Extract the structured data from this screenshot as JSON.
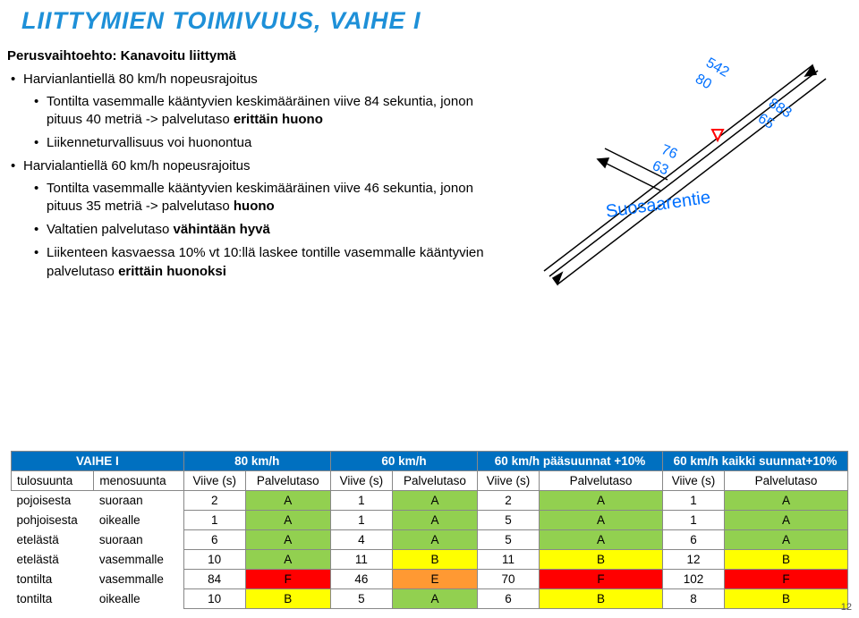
{
  "title": "LIITTYMIEN TOIMIVUUS, VAIHE I",
  "subheading": "Perusvaihtoehto: Kanavoitu liittymä",
  "bullets": [
    {
      "text": "Harvianlantiellä 80 km/h nopeusrajoitus",
      "sub": [
        {
          "pre": "Tontilta vasemmalle kääntyvien keskimääräinen viive 84 sekuntia, jonon pituus 40 metriä -> palvelutaso ",
          "bold": "erittäin huono"
        },
        {
          "pre": "Liikenneturvallisuus voi huonontua"
        }
      ]
    },
    {
      "text": "Harvialantiellä 60 km/h nopeusrajoitus",
      "sub": [
        {
          "pre": "Tontilta vasemmalle kääntyvien keskimääräinen viive 46 sekuntia, jonon pituus 35 metriä -> palvelutaso ",
          "bold": "huono"
        },
        {
          "pre": "Valtatien palvelutaso ",
          "bold": "vähintään hyvä"
        },
        {
          "pre": "Liikenteen kasvaessa 10% vt 10:llä laskee tontille vasemmalle kääntyvien palvelutaso ",
          "bold": "erittäin huonoksi"
        }
      ]
    }
  ],
  "map": {
    "road_arrow_color": "#000000",
    "road_fill": "#dcdcdc",
    "label_color": "#0070ff",
    "labels": {
      "a": "542",
      "b": "80",
      "c": "883",
      "d": "65",
      "e": "76",
      "f": "63"
    },
    "street": "Suosaarentie",
    "triangle_stroke": "#ff0000",
    "triangle_fill": "#ffffff"
  },
  "table": {
    "vaihe": "VAIHE I",
    "groups": [
      "80 km/h",
      "60 km/h",
      "60 km/h pääsuunnat +10%",
      "60 km/h kaikki suunnat+10%"
    ],
    "subhdr_dir1": "tulosuunta",
    "subhdr_dir2": "menosuunta",
    "subhdr_v": "Viive (s)",
    "subhdr_p": "Palvelutaso",
    "rows": [
      {
        "d1": "pojoisesta",
        "d2": "suoraan",
        "c": [
          [
            "2",
            "A"
          ],
          [
            "1",
            "A"
          ],
          [
            "2",
            "A"
          ],
          [
            "1",
            "A"
          ]
        ]
      },
      {
        "d1": "pohjoisesta",
        "d2": "oikealle",
        "c": [
          [
            "1",
            "A"
          ],
          [
            "1",
            "A"
          ],
          [
            "5",
            "A"
          ],
          [
            "1",
            "A"
          ]
        ]
      },
      {
        "d1": "etelästä",
        "d2": "suoraan",
        "c": [
          [
            "6",
            "A"
          ],
          [
            "4",
            "A"
          ],
          [
            "5",
            "A"
          ],
          [
            "6",
            "A"
          ]
        ]
      },
      {
        "d1": "etelästä",
        "d2": "vasemmalle",
        "c": [
          [
            "10",
            "A"
          ],
          [
            "11",
            "B"
          ],
          [
            "11",
            "B"
          ],
          [
            "12",
            "B"
          ]
        ]
      },
      {
        "d1": "tontilta",
        "d2": "vasemmalle",
        "c": [
          [
            "84",
            "F"
          ],
          [
            "46",
            "E"
          ],
          [
            "70",
            "F"
          ],
          [
            "102",
            "F"
          ]
        ]
      },
      {
        "d1": "tontilta",
        "d2": "oikealle",
        "c": [
          [
            "10",
            "B"
          ],
          [
            "5",
            "A"
          ],
          [
            "6",
            "B"
          ],
          [
            "8",
            "B"
          ]
        ]
      }
    ],
    "level_colors": {
      "A": "#92d050",
      "B": "#ffff00",
      "E": "#ff9933",
      "F": "#ff0000"
    }
  },
  "pagenum": "12"
}
